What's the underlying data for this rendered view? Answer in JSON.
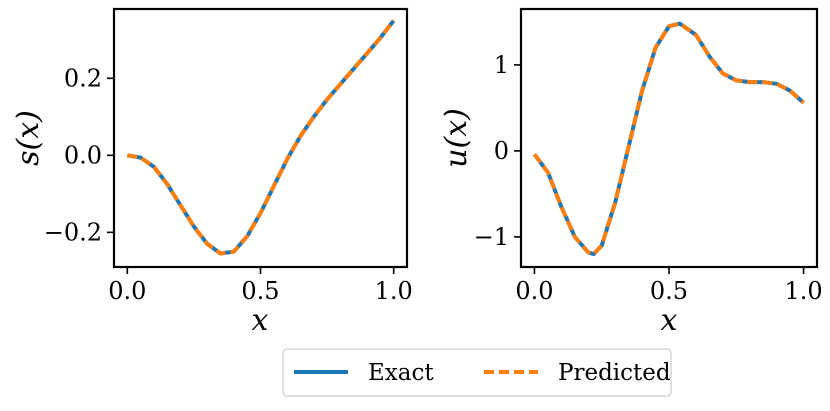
{
  "legend": {
    "exact_label": "Exact",
    "predicted_label": "Predicted",
    "placement": "bottom-center"
  },
  "colors": {
    "exact": "#1f77b4",
    "predicted": "#ff7f0e"
  },
  "chart_data": [
    {
      "type": "line",
      "xlabel": "x",
      "ylabel": "s(x)",
      "xlim": [
        -0.05,
        1.05
      ],
      "ylim": [
        -0.29,
        0.38
      ],
      "xticks": [
        0.0,
        0.5,
        1.0
      ],
      "xtick_labels": [
        "0.0",
        "0.5",
        "1.0"
      ],
      "yticks": [
        -0.2,
        0.0,
        0.2
      ],
      "ytick_labels": [
        "−0.2",
        "0.0",
        "0.2"
      ],
      "grid": false,
      "x": [
        0.0,
        0.05,
        0.1,
        0.15,
        0.2,
        0.25,
        0.3,
        0.35,
        0.4,
        0.45,
        0.5,
        0.55,
        0.6,
        0.65,
        0.7,
        0.75,
        0.8,
        0.85,
        0.9,
        0.95,
        1.0
      ],
      "series": [
        {
          "name": "Exact",
          "values": [
            0.0,
            -0.006,
            -0.03,
            -0.075,
            -0.13,
            -0.185,
            -0.23,
            -0.255,
            -0.25,
            -0.21,
            -0.15,
            -0.08,
            -0.01,
            0.05,
            0.1,
            0.145,
            0.185,
            0.225,
            0.265,
            0.305,
            0.35
          ]
        },
        {
          "name": "Predicted",
          "values": [
            0.0,
            -0.006,
            -0.03,
            -0.075,
            -0.13,
            -0.185,
            -0.23,
            -0.255,
            -0.25,
            -0.21,
            -0.15,
            -0.08,
            -0.01,
            0.05,
            0.1,
            0.145,
            0.185,
            0.225,
            0.265,
            0.305,
            0.35
          ]
        }
      ]
    },
    {
      "type": "line",
      "xlabel": "x",
      "ylabel": "u(x)",
      "xlim": [
        -0.05,
        1.05
      ],
      "ylim": [
        -1.35,
        1.65
      ],
      "xticks": [
        0.0,
        0.5,
        1.0
      ],
      "xtick_labels": [
        "0.0",
        "0.5",
        "1.0"
      ],
      "yticks": [
        -1,
        0,
        1
      ],
      "ytick_labels": [
        "−1",
        "0",
        "1"
      ],
      "grid": false,
      "x": [
        0.0,
        0.05,
        0.1,
        0.15,
        0.2,
        0.22,
        0.25,
        0.3,
        0.35,
        0.4,
        0.45,
        0.5,
        0.54,
        0.6,
        0.65,
        0.7,
        0.75,
        0.8,
        0.85,
        0.9,
        0.95,
        1.0
      ],
      "series": [
        {
          "name": "Exact",
          "values": [
            -0.04,
            -0.25,
            -0.65,
            -1.0,
            -1.18,
            -1.2,
            -1.1,
            -0.6,
            0.05,
            0.7,
            1.2,
            1.45,
            1.48,
            1.35,
            1.1,
            0.9,
            0.82,
            0.8,
            0.8,
            0.78,
            0.7,
            0.56
          ]
        },
        {
          "name": "Predicted",
          "values": [
            -0.04,
            -0.25,
            -0.65,
            -1.0,
            -1.18,
            -1.2,
            -1.1,
            -0.6,
            0.05,
            0.7,
            1.2,
            1.45,
            1.48,
            1.35,
            1.1,
            0.9,
            0.82,
            0.8,
            0.8,
            0.78,
            0.7,
            0.56
          ]
        }
      ]
    }
  ]
}
